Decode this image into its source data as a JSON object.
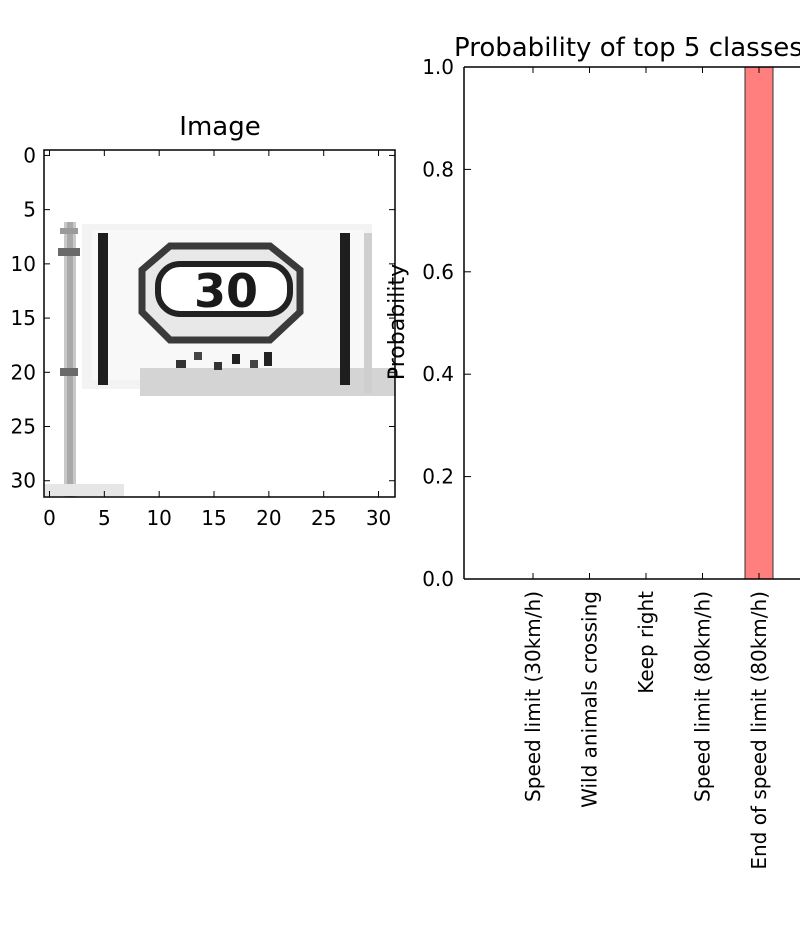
{
  "image_panel": {
    "title": "Image",
    "x_ticks": [
      0,
      5,
      10,
      15,
      20,
      25,
      30
    ],
    "y_ticks": [
      0,
      5,
      10,
      15,
      20,
      25,
      30
    ],
    "xlim": [
      -0.5,
      31.5
    ],
    "ylim": [
      31.5,
      -0.5
    ],
    "sign_text": "30"
  },
  "chart_data": {
    "type": "bar",
    "title": "Probability of top 5 classes",
    "xlabel": "",
    "ylabel": "Probability",
    "categories": [
      "Speed limit (30km/h)",
      "Wild animals crossing",
      "Keep right",
      "Speed limit (80km/h)",
      "End of speed limit (80km/h)"
    ],
    "values": [
      0.0,
      0.0,
      0.0,
      0.0,
      1.0
    ],
    "ylim": [
      0,
      1.0
    ],
    "y_ticks": [
      "0.0",
      "0.2",
      "0.4",
      "0.6",
      "0.8",
      "1.0"
    ],
    "bar_color": "#ff7f7f",
    "grid": false
  }
}
